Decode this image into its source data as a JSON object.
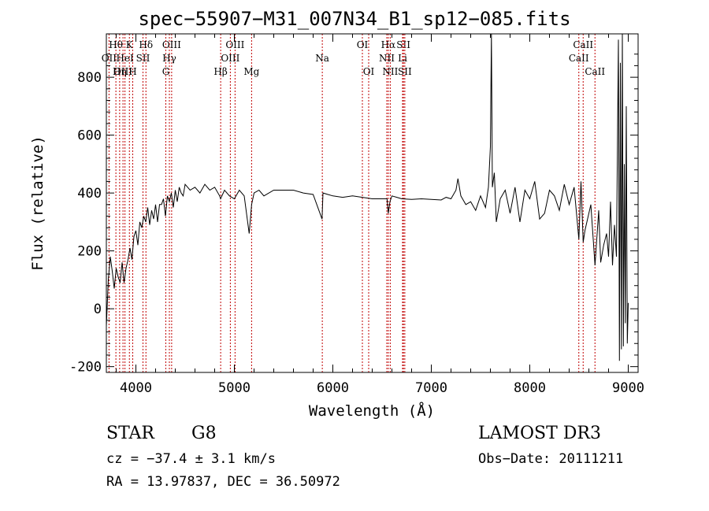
{
  "chart_data": {
    "type": "line",
    "title": "spec−55907−M31_007N34_B1_sp12−085.fits",
    "xlabel": "Wavelength (Å)",
    "ylabel": "Flux (relative)",
    "xlim": [
      3700,
      9100
    ],
    "ylim": [
      -220,
      950
    ],
    "xticks": [
      4000,
      5000,
      6000,
      7000,
      8000,
      9000
    ],
    "yticks": [
      -200,
      0,
      200,
      400,
      600,
      800
    ],
    "grid": false,
    "series": [
      {
        "name": "flux",
        "x": [
          3700,
          3720,
          3740,
          3760,
          3780,
          3800,
          3820,
          3840,
          3860,
          3880,
          3900,
          3920,
          3940,
          3960,
          3980,
          4000,
          4020,
          4040,
          4060,
          4080,
          4100,
          4120,
          4140,
          4160,
          4180,
          4200,
          4220,
          4240,
          4260,
          4280,
          4300,
          4320,
          4340,
          4360,
          4380,
          4400,
          4420,
          4440,
          4460,
          4480,
          4500,
          4550,
          4600,
          4650,
          4700,
          4750,
          4800,
          4850,
          4860,
          4900,
          4950,
          5000,
          5050,
          5100,
          5150,
          5175,
          5200,
          5250,
          5300,
          5400,
          5500,
          5600,
          5700,
          5800,
          5890,
          5900,
          5950,
          6000,
          6100,
          6200,
          6300,
          6400,
          6500,
          6550,
          6563,
          6580,
          6600,
          6650,
          6700,
          6800,
          6900,
          7000,
          7100,
          7150,
          7200,
          7250,
          7270,
          7300,
          7350,
          7400,
          7450,
          7500,
          7550,
          7580,
          7600,
          7610,
          7620,
          7640,
          7660,
          7700,
          7750,
          7800,
          7850,
          7900,
          7950,
          8000,
          8050,
          8100,
          8150,
          8200,
          8250,
          8300,
          8350,
          8400,
          8450,
          8498,
          8520,
          8542,
          8560,
          8600,
          8620,
          8662,
          8700,
          8720,
          8750,
          8780,
          8800,
          8820,
          8840,
          8860,
          8880,
          8900,
          8910,
          8920,
          8930,
          8940,
          8950,
          8960,
          8970,
          8980,
          8990,
          9000
        ],
        "values": [
          -60,
          100,
          180,
          130,
          70,
          140,
          110,
          90,
          160,
          90,
          140,
          170,
          210,
          170,
          250,
          270,
          220,
          300,
          280,
          320,
          300,
          350,
          290,
          340,
          310,
          360,
          300,
          360,
          360,
          380,
          320,
          390,
          370,
          400,
          350,
          410,
          370,
          420,
          400,
          390,
          430,
          410,
          420,
          400,
          430,
          410,
          420,
          390,
          380,
          410,
          390,
          380,
          410,
          390,
          260,
          360,
          400,
          410,
          390,
          410,
          410,
          410,
          400,
          395,
          310,
          400,
          395,
          390,
          385,
          390,
          385,
          380,
          380,
          380,
          330,
          370,
          390,
          385,
          380,
          378,
          380,
          378,
          376,
          385,
          380,
          410,
          450,
          390,
          360,
          370,
          340,
          390,
          350,
          420,
          560,
          950,
          420,
          470,
          300,
          380,
          410,
          330,
          420,
          300,
          410,
          380,
          440,
          310,
          330,
          410,
          390,
          340,
          430,
          360,
          420,
          240,
          440,
          230,
          270,
          330,
          360,
          150,
          340,
          160,
          220,
          260,
          180,
          370,
          150,
          290,
          180,
          930,
          -180,
          850,
          -140,
          950,
          -130,
          500,
          -50,
          700,
          -120,
          20
        ]
      }
    ],
    "lines": [
      {
        "label": "Hθ",
        "w": 3797,
        "row": 1
      },
      {
        "label": "OII",
        "w": 3727,
        "row": 2
      },
      {
        "label": "OIII",
        "w": 3869,
        "row": 3
      },
      {
        "label": "Hη",
        "w": 3835,
        "row": 3
      },
      {
        "label": "HeI",
        "w": 3889,
        "row": 2
      },
      {
        "label": "K",
        "w": 3934,
        "row": 1
      },
      {
        "label": "SII",
        "w": 4072,
        "row": 2
      },
      {
        "label": "H",
        "w": 3968,
        "row": 3
      },
      {
        "label": "Hδ",
        "w": 4102,
        "row": 1
      },
      {
        "label": "OIII",
        "w": 4363,
        "row": 1
      },
      {
        "label": "Hγ",
        "w": 4340,
        "row": 2
      },
      {
        "label": "G",
        "w": 4304,
        "row": 3
      },
      {
        "label": "Hβ",
        "w": 4861,
        "row": 3
      },
      {
        "label": "OIII",
        "w": 5007,
        "row": 1
      },
      {
        "label": "OIII",
        "w": 4959,
        "row": 2
      },
      {
        "label": "Mg",
        "w": 5175,
        "row": 3
      },
      {
        "label": "Na",
        "w": 5893,
        "row": 2
      },
      {
        "label": "OI",
        "w": 6300,
        "row": 1
      },
      {
        "label": "OI",
        "w": 6364,
        "row": 3
      },
      {
        "label": "Hα",
        "w": 6563,
        "row": 1
      },
      {
        "label": "NII",
        "w": 6548,
        "row": 2
      },
      {
        "label": "NII",
        "w": 6583,
        "row": 3
      },
      {
        "label": "SII",
        "w": 6717,
        "row": 1
      },
      {
        "label": "Li",
        "w": 6708,
        "row": 2
      },
      {
        "label": "SII",
        "w": 6731,
        "row": 3
      },
      {
        "label": "CaII",
        "w": 8542,
        "row": 1
      },
      {
        "label": "CaII",
        "w": 8498,
        "row": 2
      },
      {
        "label": "CaII",
        "w": 8662,
        "row": 3
      }
    ]
  },
  "info": {
    "class": "STAR",
    "subclass": "G8",
    "survey": "LAMOST DR3",
    "cz": "cz = −37.4 ± 3.1 km/s",
    "obs_date": "Obs−Date: 20111211",
    "radec": "RA =  13.97837, DEC =  36.50972"
  }
}
